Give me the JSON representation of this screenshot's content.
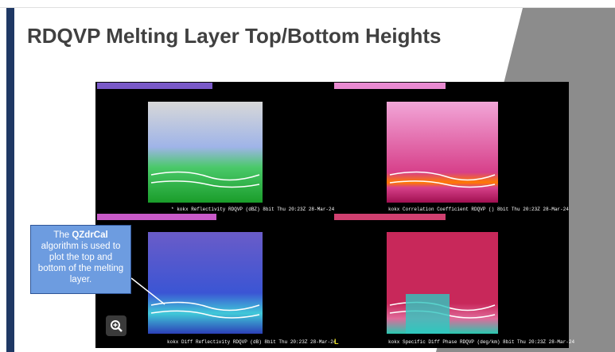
{
  "header": {
    "title": "RDQVP Melting Layer Top/Bottom Heights"
  },
  "callout": {
    "lead": "The",
    "keyword": "QZdrCal",
    "rest": "algorithm is used to plot the top and bottom of the melting layer."
  },
  "panels": [
    {
      "caption": "* kokx Reflectivity RDQVP (dBZ) 8bit  Thu 20:23Z 28-Mar-24"
    },
    {
      "caption": "kokx Correlation Coefficient RDQVP () 8bit  Thu 20:23Z 28-Mar-24"
    },
    {
      "caption": "kokx Diff Reflectivity RDQVP (dB) 8bit  Thu 20:23Z 28-Mar-24"
    },
    {
      "caption": "kokx Specific Diff Phase RDQVP (deg/km) 8bit  Thu 20:23Z 28-Mar-24"
    }
  ],
  "marker": "L"
}
